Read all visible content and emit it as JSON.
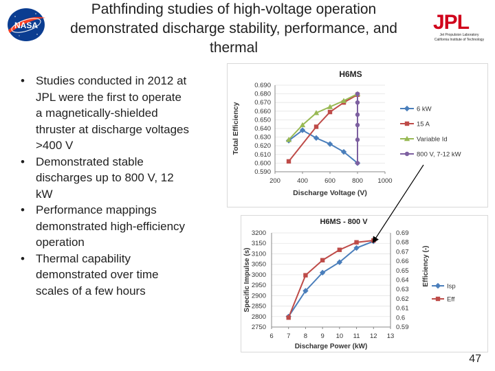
{
  "title": "Pathfinding studies of high-voltage operation demonstrated discharge stability, performance, and thermal",
  "logos": {
    "nasa_text": "NASA",
    "jpl_text": "JPL",
    "jpl_line1": "Jet Propulsion Laboratory",
    "jpl_line2": "California Institute of Technology"
  },
  "bullets": [
    "Studies conducted in 2012 at JPL were the first to operate a magnetically-shielded thruster at discharge voltages >400 V",
    "Demonstrated stable discharges up to 800 V, 12 kW",
    "Performance mappings demonstrated high-efficiency operation",
    "Thermal capability demonstrated over time scales of a few hours"
  ],
  "bullet_symbol": "•",
  "page_number": "47",
  "colors": {
    "blue": "#4a7ebb",
    "red": "#be4b48",
    "green": "#98b954",
    "purple": "#7d60a0",
    "jpl_red": "#d0021b",
    "nasa_blue": "#0b3d91"
  },
  "chart_data": [
    {
      "type": "line",
      "title": "H6MS",
      "xlabel": "Discharge Voltage (V)",
      "ylabel": "Total Efficiency",
      "xlim": [
        200,
        1000
      ],
      "ylim": [
        0.59,
        0.69
      ],
      "x_ticks": [
        "200",
        "400",
        "600",
        "800",
        "1000"
      ],
      "y_ticks": [
        "0.590",
        "0.600",
        "0.610",
        "0.620",
        "0.630",
        "0.640",
        "0.650",
        "0.660",
        "0.670",
        "0.680",
        "0.690"
      ],
      "legend_position": "right",
      "series": [
        {
          "name": "6 kW",
          "color": "#4a7ebb",
          "marker": "diamond",
          "x": [
            300,
            400,
            500,
            600,
            700,
            800
          ],
          "y": [
            0.626,
            0.638,
            0.629,
            0.622,
            0.613,
            0.6
          ]
        },
        {
          "name": "15 A",
          "color": "#be4b48",
          "marker": "square",
          "x": [
            300,
            500,
            600,
            700,
            800
          ],
          "y": [
            0.602,
            0.642,
            0.659,
            0.67,
            0.679
          ]
        },
        {
          "name": "Variable Id",
          "color": "#98b954",
          "marker": "triangle",
          "x": [
            300,
            400,
            500,
            600,
            700,
            800
          ],
          "y": [
            0.627,
            0.644,
            0.658,
            0.665,
            0.672,
            0.68
          ]
        },
        {
          "name": "800 V, 7-12 kW",
          "color": "#7d60a0",
          "marker": "circle",
          "x": [
            800,
            800,
            800,
            800,
            800,
            800
          ],
          "y": [
            0.6,
            0.627,
            0.644,
            0.656,
            0.67,
            0.68
          ]
        }
      ]
    },
    {
      "type": "line",
      "title": "H6MS - 800 V",
      "xlabel": "Discharge Power (kW)",
      "ylabel": "Specific Impulse (s)",
      "y2label": "Efficiency (-)",
      "xlim": [
        6,
        13
      ],
      "ylim": [
        2750,
        3200
      ],
      "y2lim": [
        0.59,
        0.69
      ],
      "x_ticks": [
        "6",
        "7",
        "8",
        "9",
        "10",
        "11",
        "12",
        "13"
      ],
      "y_ticks": [
        "2750",
        "2800",
        "2850",
        "2900",
        "2950",
        "3000",
        "3050",
        "3100",
        "3150",
        "3200"
      ],
      "y2_ticks": [
        "0.59",
        "0.6",
        "0.61",
        "0.62",
        "0.63",
        "0.64",
        "0.65",
        "0.66",
        "0.67",
        "0.68",
        "0.69"
      ],
      "legend_position": "right",
      "series": [
        {
          "name": "Isp",
          "color": "#4a7ebb",
          "marker": "diamond",
          "axis": "left",
          "x": [
            7,
            8,
            9,
            10,
            11,
            12
          ],
          "y": [
            2800,
            2923,
            3010,
            3060,
            3128,
            3160
          ]
        },
        {
          "name": "Eff",
          "color": "#be4b48",
          "marker": "square",
          "axis": "right",
          "x": [
            7,
            8,
            9,
            10,
            11,
            12
          ],
          "y": [
            0.6,
            0.645,
            0.661,
            0.672,
            0.68,
            0.682
          ]
        }
      ]
    }
  ]
}
